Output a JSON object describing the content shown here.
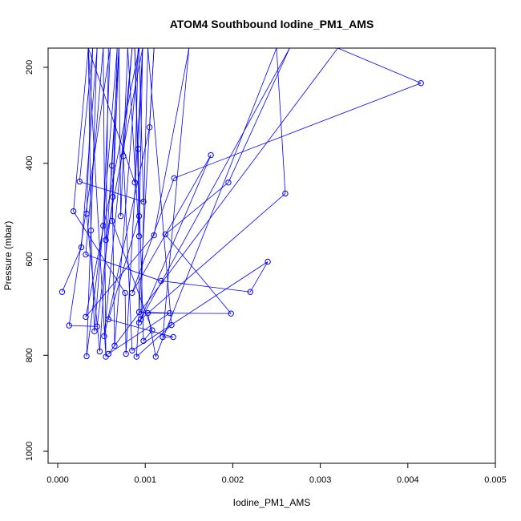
{
  "chart_data": {
    "type": "line",
    "title": "ATOM4 Southbound Iodine_PM1_AMS",
    "xlabel": "Iodine_PM1_AMS",
    "ylabel": "Pressure (mbar)",
    "xlim": [
      0,
      0.005
    ],
    "ylim": [
      1025,
      160
    ],
    "y_axis_inverted": true,
    "x_ticks": [
      0,
      0.001,
      0.002,
      0.003,
      0.004,
      0.005
    ],
    "x_tick_labels": [
      "0.000",
      "0.001",
      "0.002",
      "0.003",
      "0.004",
      "0.005"
    ],
    "y_ticks": [
      200,
      400,
      600,
      800,
      1000
    ],
    "y_tick_labels": [
      "200",
      "400",
      "600",
      "800",
      "1000"
    ],
    "grid": false,
    "legend": "none",
    "series_color": "#0000ff",
    "marker": "open-circle",
    "series": [
      {
        "points": [
          {
            "x": 5e-05,
            "y": 668
          },
          {
            "x": 0.00027,
            "y": 575
          },
          {
            "x": 0.00045,
            "y": 160
          },
          {
            "x": 0.00033,
            "y": 802
          },
          {
            "x": 0.00052,
            "y": 530
          },
          {
            "x": 0.0006,
            "y": 160
          },
          {
            "x": 0.00013,
            "y": 738
          },
          {
            "x": 0.00045,
            "y": 740
          },
          {
            "x": 0.00063,
            "y": 470
          },
          {
            "x": 0.00068,
            "y": 160
          },
          {
            "x": 0.00042,
            "y": 750
          },
          {
            "x": 0.00038,
            "y": 540
          },
          {
            "x": 0.00035,
            "y": 160
          },
          {
            "x": 0.00055,
            "y": 803
          },
          {
            "x": 0.00052,
            "y": 160
          },
          {
            "x": 0.00032,
            "y": 590
          },
          {
            "x": 0.00118,
            "y": 645
          },
          {
            "x": 0.0022,
            "y": 668
          },
          {
            "x": 0.0024,
            "y": 605
          },
          {
            "x": 0.00085,
            "y": 790
          },
          {
            "x": 0.00075,
            "y": 385
          },
          {
            "x": 0.00085,
            "y": 160
          },
          {
            "x": 0.00053,
            "y": 760
          },
          {
            "x": 0.00105,
            "y": 325
          },
          {
            "x": 0.0011,
            "y": 160
          },
          {
            "x": 0.0009,
            "y": 803
          },
          {
            "x": 0.0013,
            "y": 737
          },
          {
            "x": 0.00103,
            "y": 160
          },
          {
            "x": 0.00095,
            "y": 725
          },
          {
            "x": 0.0026,
            "y": 463
          },
          {
            "x": 0.0025,
            "y": 160
          },
          {
            "x": 0.00112,
            "y": 803
          },
          {
            "x": 0.00103,
            "y": 712
          },
          {
            "x": 0.00198,
            "y": 713
          },
          {
            "x": 0.00123,
            "y": 548
          },
          {
            "x": 0.00195,
            "y": 440
          },
          {
            "x": 0.00265,
            "y": 160
          },
          {
            "x": 0.00093,
            "y": 732
          },
          {
            "x": 0.00175,
            "y": 383
          },
          {
            "x": 0.00085,
            "y": 670
          },
          {
            "x": 0.00133,
            "y": 431
          },
          {
            "x": 0.00415,
            "y": 233
          },
          {
            "x": 0.0032,
            "y": 160
          },
          {
            "x": 0.00058,
            "y": 797
          },
          {
            "x": 0.00128,
            "y": 712
          },
          {
            "x": 0.00093,
            "y": 710
          },
          {
            "x": 0.00092,
            "y": 370
          },
          {
            "x": 0.00097,
            "y": 160
          },
          {
            "x": 0.00078,
            "y": 797
          },
          {
            "x": 0.00077,
            "y": 670
          },
          {
            "x": 0.00018,
            "y": 500
          },
          {
            "x": 0.00035,
            "y": 160
          },
          {
            "x": 0.00088,
            "y": 440
          },
          {
            "x": 0.00092,
            "y": 160
          },
          {
            "x": 0.00065,
            "y": 780
          },
          {
            "x": 0.00062,
            "y": 405
          },
          {
            "x": 0.0007,
            "y": 160
          },
          {
            "x": 0.00048,
            "y": 792
          },
          {
            "x": 0.00033,
            "y": 505
          },
          {
            "x": 0.0004,
            "y": 160
          },
          {
            "x": 0.00025,
            "y": 438
          },
          {
            "x": 0.00098,
            "y": 480
          },
          {
            "x": 0.00093,
            "y": 160
          },
          {
            "x": 0.00032,
            "y": 720
          },
          {
            "x": 0.0011,
            "y": 550
          },
          {
            "x": 0.0015,
            "y": 160
          },
          {
            "x": 0.0012,
            "y": 762
          },
          {
            "x": 0.00132,
            "y": 762
          },
          {
            "x": 0.00058,
            "y": 725
          },
          {
            "x": 0.00093,
            "y": 510
          },
          {
            "x": 0.00088,
            "y": 160
          },
          {
            "x": 0.00098,
            "y": 770
          },
          {
            "x": 0.00108,
            "y": 748
          },
          {
            "x": 0.00062,
            "y": 520
          },
          {
            "x": 0.0007,
            "y": 160
          },
          {
            "x": 0.00072,
            "y": 510
          },
          {
            "x": 0.0008,
            "y": 160
          },
          {
            "x": 0.00093,
            "y": 552
          },
          {
            "x": 0.00097,
            "y": 160
          },
          {
            "x": 0.00055,
            "y": 560
          },
          {
            "x": 0.00058,
            "y": 160
          }
        ]
      }
    ]
  }
}
